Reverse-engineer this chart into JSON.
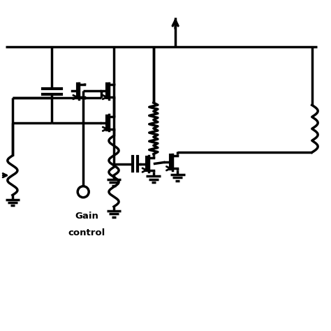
{
  "bg_color": "#ffffff",
  "line_color": "#000000",
  "line_width": 2.5,
  "fig_size": [
    4.74,
    4.74
  ],
  "dpi": 100
}
